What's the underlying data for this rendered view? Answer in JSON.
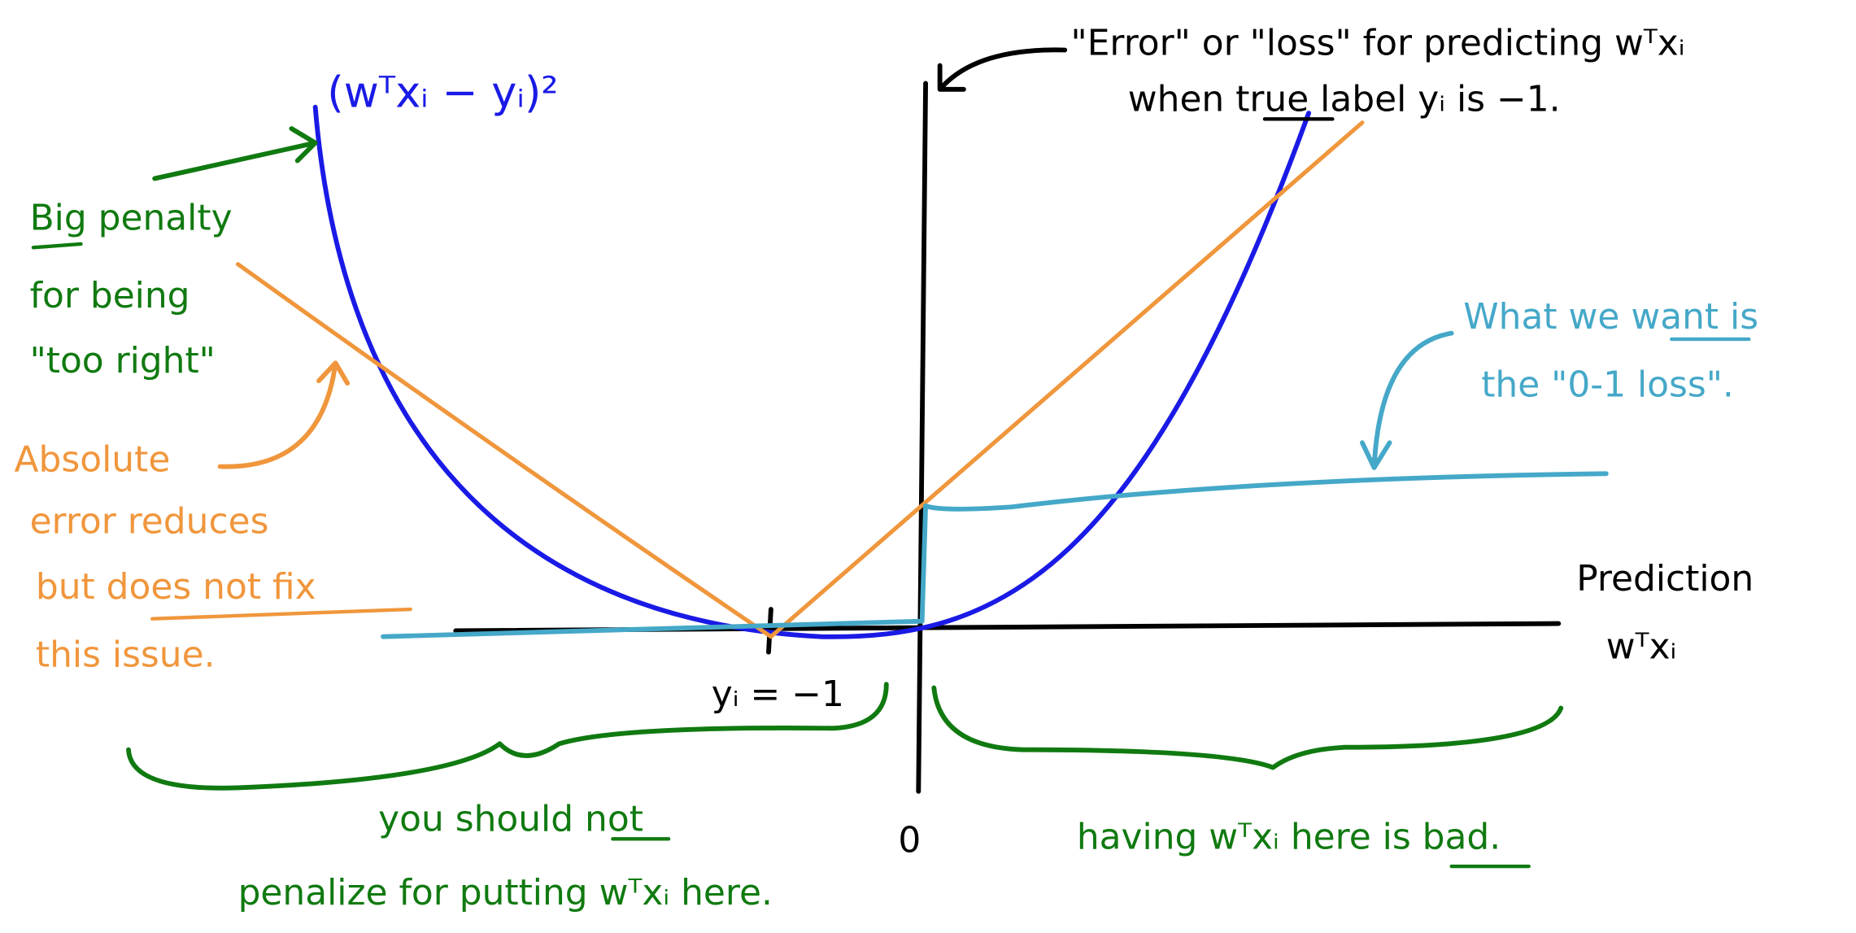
{
  "labels": {
    "squared_error": "(wᵀxᵢ − yᵢ)²",
    "loss_description": [
      "\"Error\" or \"loss\" for predicting wᵀxᵢ",
      "when true label yᵢ is −1."
    ],
    "big_penalty": [
      "Big penalty",
      "for being",
      "\"too right\""
    ],
    "absolute_error": [
      "Absolute",
      "error reduces",
      "but does not fix",
      "this issue."
    ],
    "zero_one": [
      "What we want is",
      "the \"0-1 loss\"."
    ],
    "x_axis": [
      "Prediction",
      "wᵀxᵢ"
    ],
    "true_label": "yᵢ = −1",
    "origin": "0",
    "left_region": [
      "you should not",
      "penalize for putting wᵀxᵢ here."
    ],
    "right_region": "having wᵀxᵢ here is bad."
  }
}
